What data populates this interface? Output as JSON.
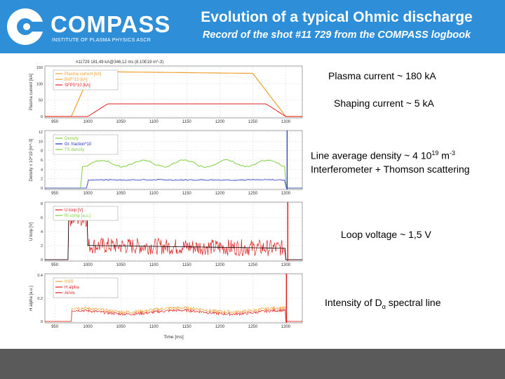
{
  "logo": {
    "name": "COMPASS",
    "subtitle": "INSTITUTE OF PLASMA PHYSICS ASCR"
  },
  "header": {
    "title": "Evolution of a typical Ohmic discharge",
    "subtitle": "Record of the shot #11 729 from the COMPASS logbook"
  },
  "colors": {
    "header_bg": "#2e8fd8",
    "footer_bg": "#5a5a5a",
    "orange": "#f0a030",
    "red": "#e02020",
    "green": "#80d040",
    "blue": "#2030c0",
    "black": "#000000"
  },
  "figure": {
    "shot_header": "#11729  181,49 kA@346,12 ms (8.10E19 m^-3)",
    "time_label": "Time [ms]",
    "x_ticks": [
      "950",
      "1000",
      "1050",
      "1100",
      "1150",
      "1200",
      "1250",
      "1300"
    ],
    "panels": [
      {
        "ylabel": "Plasma current [kA]",
        "y_ticks": [
          "0",
          "50",
          "100",
          "150"
        ],
        "legend": [
          "Plasma current [kA]",
          "BVF*10 [kA]",
          "SFPS*10 [kA]"
        ]
      },
      {
        "ylabel": "Density x 10^19 [m^-3]",
        "y_ticks": [
          "0",
          "2",
          "4",
          "6",
          "8",
          "10",
          "12"
        ],
        "legend": [
          "Density",
          "Gr. fraction*10",
          "TS density"
        ]
      },
      {
        "ylabel": "U loop [V]",
        "y_ticks": [
          "0",
          "2",
          "4",
          "6",
          "8"
        ],
        "legend": [
          "U loop [V]",
          "Ri comp [a.u.]"
        ]
      },
      {
        "ylabel": "H alpha [a.u.]",
        "y_ticks": [
          "0",
          "0.2",
          "0.4"
        ],
        "legend": [
          "HXR",
          "H alpha",
          "Airvis"
        ]
      }
    ]
  },
  "annotations": {
    "current": "Plasma current ~ 180 kA",
    "shaping": "Shaping current ~ 5 kA",
    "density_pre": "Line average density ~ 4 10",
    "density_exp": "19",
    "density_unit": " m",
    "density_unit_exp": "-3",
    "density_line2": "Interferometer + Thomson scattering",
    "loop": "Loop voltage ~ 1,5 V",
    "dalpha_pre": "Intensity of D",
    "dalpha_sub": "α",
    "dalpha_post": " spectral line"
  }
}
